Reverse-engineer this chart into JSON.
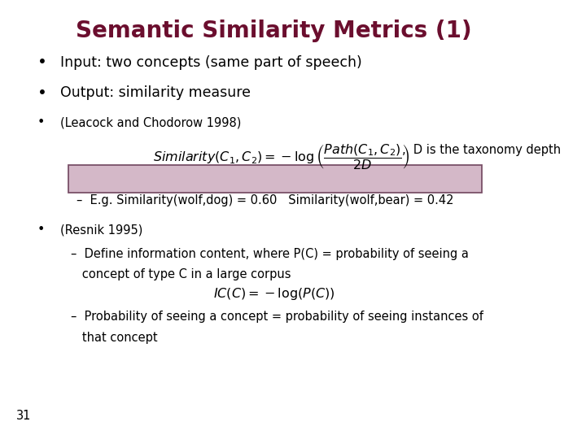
{
  "title": "Semantic Similarity Metrics (1)",
  "title_color": "#6B0E2E",
  "title_fontsize": 20,
  "background_color": "#FFFFFF",
  "text_color": "#000000",
  "bullet1": "Input: two concepts (same part of speech)",
  "bullet2": "Output: similarity measure",
  "sub_bullet1": "(Leacock and Chodorow 1998)",
  "formula1_note": ",  D is the taxonomy depth",
  "example_text": "–  E.g. Similarity(wolf,dog) = 0.60   Similarity(wolf,bear) = 0.42",
  "sub_bullet2": "(Resnik 1995)",
  "dash1_line1": "–  Define information content, where P(C) = probability of seeing a",
  "dash1_line2": "   concept of type C in a large corpus",
  "dash2_line1": "–  Probability of seeing a concept = probability of seeing instances of",
  "dash2_line2": "   that concept",
  "page_number": "31",
  "box_color": "#D4B8C8",
  "box_edge_color": "#7A5068"
}
